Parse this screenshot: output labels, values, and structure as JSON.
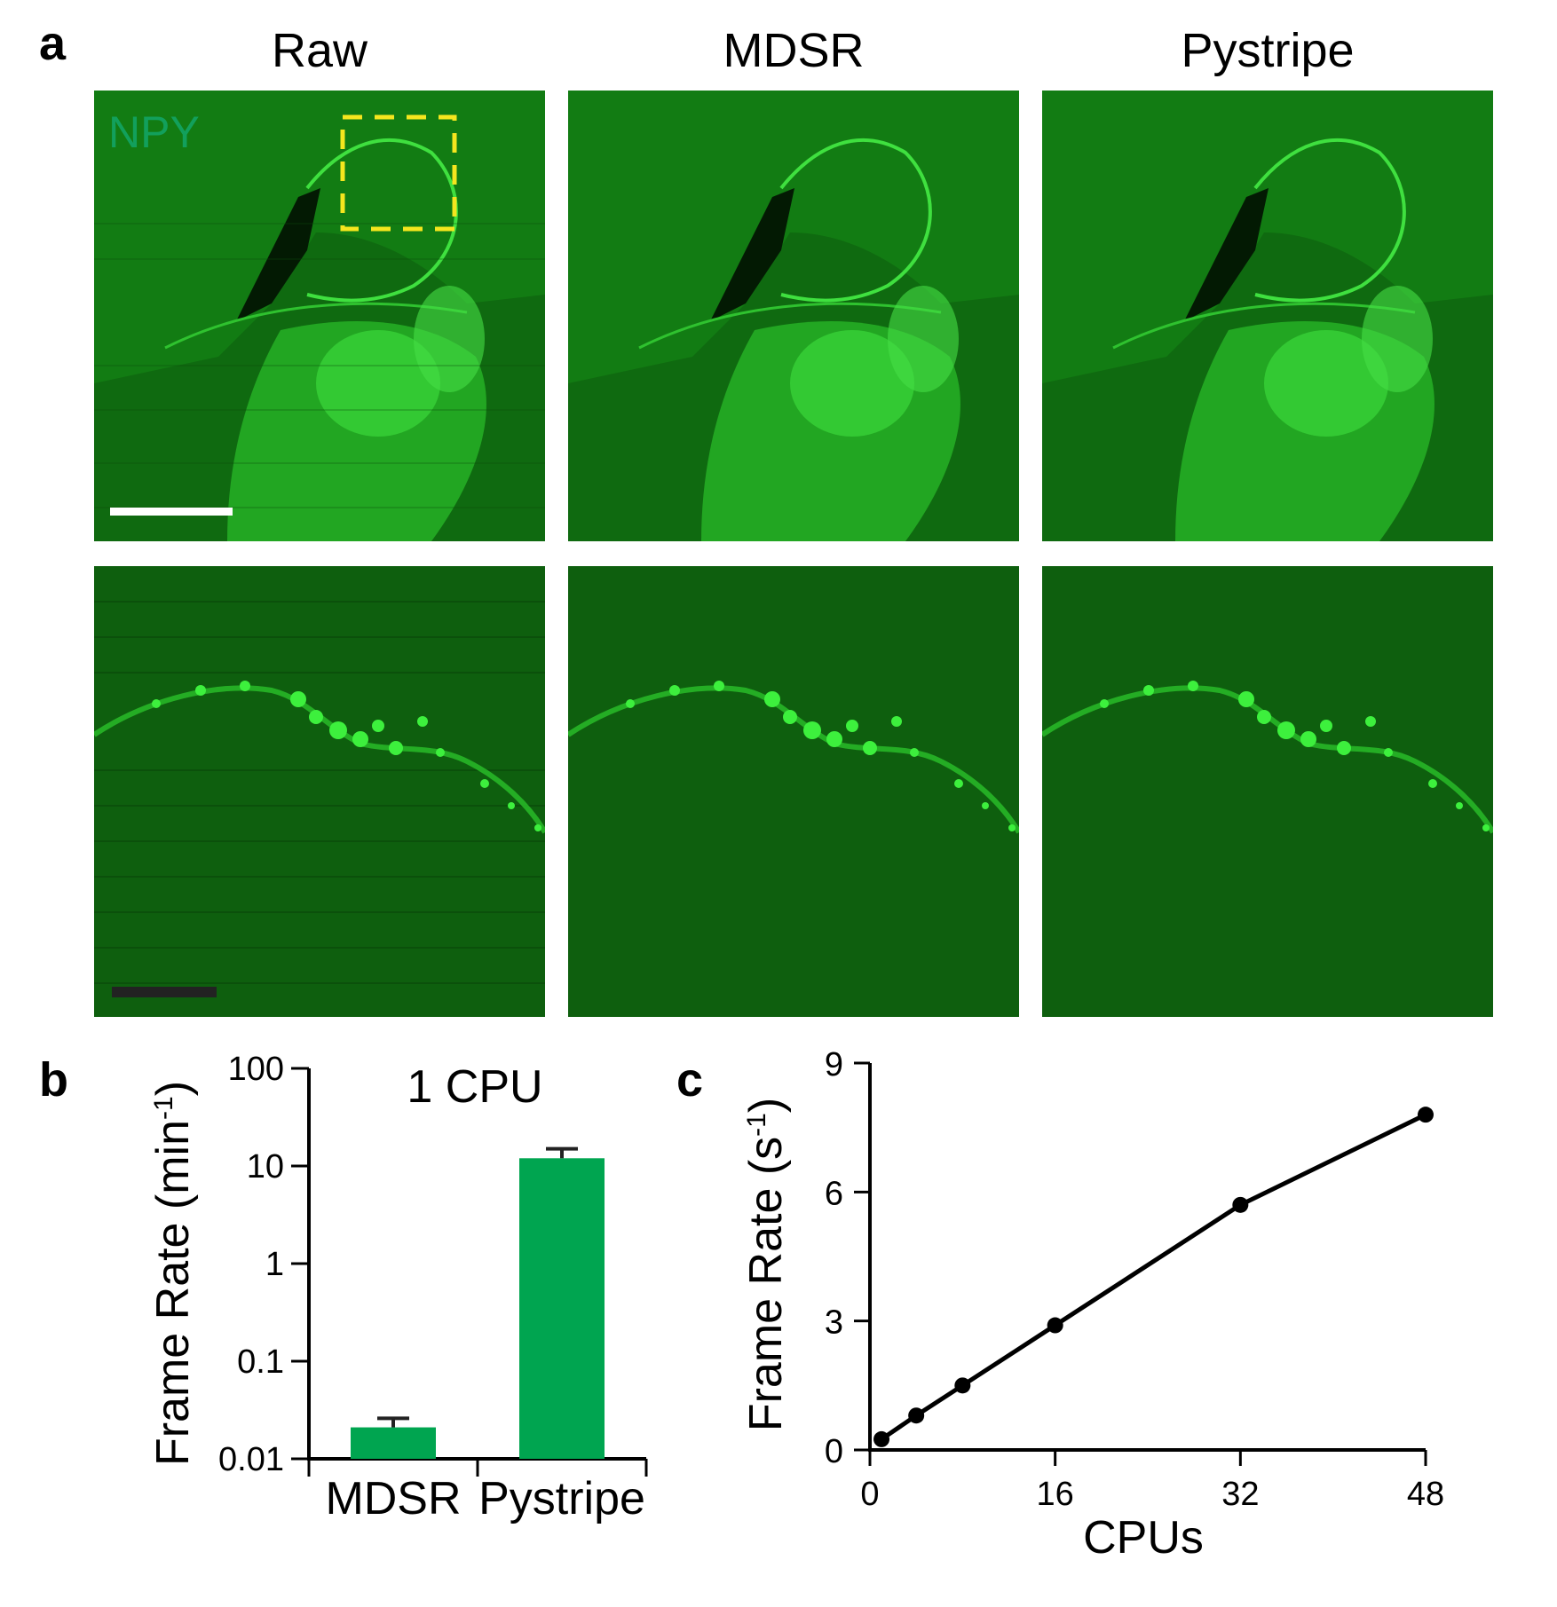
{
  "panels": {
    "a": "a",
    "b": "b",
    "c": "c"
  },
  "panel_a": {
    "columns": [
      "Raw",
      "MDSR",
      "Pystripe"
    ],
    "stain_label": "NPY",
    "stain_color": "#12a05c",
    "roi_color": "#f5e61e",
    "tissue_color": "#2fb12f",
    "background_color": "#0a5a0a"
  },
  "chart_data": [
    {
      "type": "bar",
      "title": "1 CPU",
      "ylabel": "Frame Rate (min",
      "ylabel_sup": "-1",
      "ylabel_close": ")",
      "xlabel": "",
      "categories": [
        "MDSR",
        "Pystripe"
      ],
      "values": [
        0.021,
        12
      ],
      "error_upper": [
        0.026,
        15
      ],
      "yscale": "log",
      "ylim": [
        0.01,
        100
      ],
      "yticks": [
        "0.01",
        "0.1",
        "1",
        "10",
        "100"
      ],
      "ytick_values": [
        0.01,
        0.1,
        1,
        10,
        100
      ],
      "bar_color": "#00a550",
      "grid": false
    },
    {
      "type": "line",
      "title": "",
      "xlabel": "CPUs",
      "ylabel": "Frame Rate (s",
      "ylabel_sup": "-1",
      "ylabel_close": ")",
      "x": [
        1,
        4,
        8,
        16,
        32,
        48
      ],
      "y": [
        0.25,
        0.8,
        1.5,
        2.9,
        5.7,
        7.8
      ],
      "xlim": [
        0,
        48
      ],
      "ylim": [
        0,
        9
      ],
      "xticks": [
        "0",
        "16",
        "32",
        "48"
      ],
      "xtick_values": [
        0,
        16,
        32,
        48
      ],
      "yticks": [
        "0",
        "3",
        "6",
        "9"
      ],
      "ytick_values": [
        0,
        3,
        6,
        9
      ],
      "line_color": "#000000",
      "grid": false
    }
  ]
}
